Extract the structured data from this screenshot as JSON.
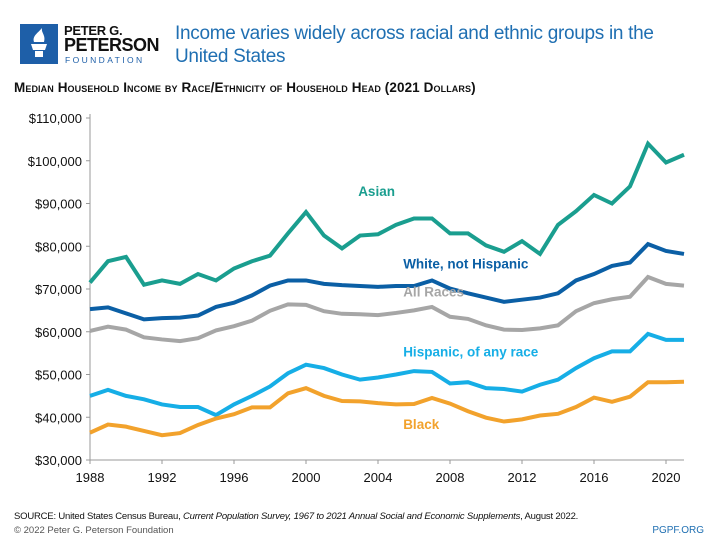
{
  "header": {
    "logo_text": [
      "PETER G.",
      "PETERSON",
      "FOUNDATION"
    ],
    "title": "Income varies widely across racial and ethnic groups in the United States",
    "subtitle": "Median Household Income by Race/Ethnicity of Household Head (2021 Dollars)"
  },
  "footer": {
    "source_prefix": "SOURCE: United States Census Bureau, ",
    "source_italic": "Current Population Survey, 1967 to 2021 Annual Social and Economic Supplements",
    "source_suffix": ", August 2022.",
    "copyright": "© 2022 Peter G. Peterson Foundation",
    "url": "PGPF.ORG"
  },
  "chart_data": {
    "type": "line",
    "title": "Median Household Income by Race/Ethnicity of Household Head (2021 Dollars)",
    "xlabel": "",
    "ylabel": "",
    "xlim": [
      1988,
      2021
    ],
    "ylim": [
      30000,
      110000
    ],
    "x_ticks": [
      1988,
      1992,
      1996,
      2000,
      2004,
      2008,
      2012,
      2016,
      2020
    ],
    "y_ticks": [
      "$30,000",
      "$40,000",
      "$50,000",
      "$60,000",
      "$70,000",
      "$80,000",
      "$90,000",
      "$100,000",
      "$110,000"
    ],
    "y_tick_values": [
      30000,
      40000,
      50000,
      60000,
      70000,
      80000,
      90000,
      100000,
      110000
    ],
    "grid": false,
    "legend": "inline labels",
    "x": [
      1988,
      1989,
      1990,
      1991,
      1992,
      1993,
      1994,
      1995,
      1996,
      1997,
      1998,
      1999,
      2000,
      2001,
      2002,
      2003,
      2004,
      2005,
      2006,
      2007,
      2008,
      2009,
      2010,
      2011,
      2012,
      2013,
      2014,
      2015,
      2016,
      2017,
      2018,
      2019,
      2020,
      2021
    ],
    "series": [
      {
        "name": "Asian",
        "color": "#1a9e8f",
        "label_year": 2002.9,
        "label_value": 91800,
        "values": [
          71500,
          76500,
          77500,
          71000,
          72000,
          71200,
          73500,
          72000,
          74800,
          76500,
          77800,
          83000,
          88000,
          82500,
          79500,
          82500,
          82800,
          85000,
          86500,
          86500,
          83000,
          83000,
          80200,
          78700,
          81200,
          78200,
          85000,
          88200,
          92000,
          90000,
          94000,
          104000,
          99600,
          101400
        ]
      },
      {
        "name": "White, not Hispanic",
        "color": "#0b5fa5",
        "label_year": 2005.4,
        "label_value": 74800,
        "values": [
          65300,
          65700,
          64300,
          62900,
          63200,
          63300,
          63800,
          65800,
          66800,
          68500,
          70800,
          72000,
          72000,
          71200,
          70900,
          70700,
          70500,
          70700,
          70700,
          72000,
          70100,
          69000,
          68000,
          67000,
          67500,
          68000,
          69000,
          72000,
          73500,
          75400,
          76200,
          80500,
          78900,
          78200
        ]
      },
      {
        "name": "All Races",
        "color": "#a6a6a6",
        "label_year": 2005.4,
        "label_value": 68200,
        "values": [
          60200,
          61200,
          60500,
          58700,
          58200,
          57800,
          58500,
          60300,
          61300,
          62600,
          64900,
          66400,
          66300,
          64800,
          64200,
          64100,
          63900,
          64400,
          65000,
          65800,
          63500,
          63000,
          61500,
          60500,
          60400,
          60800,
          61500,
          64800,
          66700,
          67600,
          68200,
          72800,
          71200,
          70800
        ]
      },
      {
        "name": "Hispanic, of any race",
        "color": "#16aee6",
        "label_year": 2005.4,
        "label_value": 54200,
        "values": [
          45000,
          46400,
          45000,
          44200,
          43000,
          42400,
          42400,
          40500,
          43000,
          45000,
          47200,
          50300,
          52300,
          51500,
          50000,
          48800,
          49300,
          50000,
          50800,
          50600,
          47900,
          48200,
          46800,
          46600,
          46000,
          47600,
          48800,
          51500,
          53800,
          55400,
          55400,
          59500,
          58100,
          58100
        ]
      },
      {
        "name": "Black",
        "color": "#f2a22c",
        "label_year": 2005.4,
        "label_value": 37300,
        "values": [
          36400,
          38300,
          37800,
          36800,
          35800,
          36300,
          38200,
          39700,
          40700,
          42300,
          42300,
          45600,
          46800,
          45000,
          43800,
          43700,
          43300,
          43000,
          43100,
          44500,
          43200,
          41400,
          39900,
          39000,
          39500,
          40400,
          40800,
          42400,
          44600,
          43600,
          44800,
          48200,
          48200,
          48300
        ]
      }
    ]
  }
}
